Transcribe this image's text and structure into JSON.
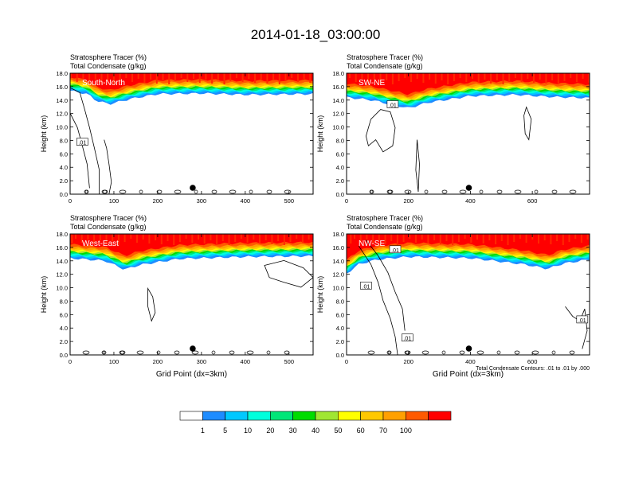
{
  "title": "2014-01-18_03:00:00",
  "chart_data": [
    {
      "type": "heatmap",
      "panel_label": "South-North",
      "subtitle_line1": "Stratosphere Tracer   (%)",
      "subtitle_line2": "Total Condensate   (g/kg)",
      "ylabel": "Height (km)",
      "xlabel": "",
      "ylim": [
        0,
        18
      ],
      "xlim": [
        0,
        555
      ],
      "yticks": [
        "0.0",
        "2.0",
        "4.0",
        "6.0",
        "8.0",
        "10.0",
        "12.0",
        "14.0",
        "16.0",
        "18.0"
      ],
      "xticks": [
        "0",
        "100",
        "200",
        "300",
        "400",
        "500"
      ],
      "xtick_values": [
        0,
        100,
        200,
        300,
        400,
        500
      ],
      "marker_x": 280,
      "contour_labels": [
        ".01"
      ],
      "tracer_profile": [
        [
          0,
          15.4
        ],
        [
          40,
          14.9
        ],
        [
          60,
          13.9
        ],
        [
          90,
          13.4
        ],
        [
          140,
          14.2
        ],
        [
          200,
          14.9
        ],
        [
          300,
          15.0
        ],
        [
          400,
          14.8
        ],
        [
          555,
          14.9
        ]
      ]
    },
    {
      "type": "heatmap",
      "panel_label": "SW-NE",
      "subtitle_line1": "Stratosphere Tracer   (%)",
      "subtitle_line2": "Total Condensate   (g/kg)",
      "ylabel": "Height (km)",
      "xlabel": "",
      "ylim": [
        0,
        18
      ],
      "xlim": [
        0,
        785
      ],
      "yticks": [
        "0.0",
        "2.0",
        "4.0",
        "6.0",
        "8.0",
        "10.0",
        "12.0",
        "14.0",
        "16.0",
        "18.0"
      ],
      "xticks": [
        "0",
        "200",
        "400",
        "600"
      ],
      "xtick_values": [
        0,
        200,
        400,
        600
      ],
      "marker_x": 395,
      "contour_labels": [
        ".01"
      ],
      "tracer_profile": [
        [
          0,
          14.4
        ],
        [
          80,
          14.0
        ],
        [
          200,
          12.8
        ],
        [
          260,
          13.6
        ],
        [
          400,
          14.6
        ],
        [
          550,
          14.8
        ],
        [
          650,
          14.5
        ],
        [
          785,
          14.3
        ]
      ]
    },
    {
      "type": "heatmap",
      "panel_label": "West-East",
      "subtitle_line1": "Stratosphere Tracer   (%)",
      "subtitle_line2": "Total Condensate   (g/kg)",
      "ylabel": "Height (km)",
      "xlabel": "Grid Point (dx=3km)",
      "ylim": [
        0,
        18
      ],
      "xlim": [
        0,
        555
      ],
      "yticks": [
        "0.0",
        "2.0",
        "4.0",
        "6.0",
        "8.0",
        "10.0",
        "12.0",
        "14.0",
        "16.0",
        "18.0"
      ],
      "xticks": [
        "0",
        "100",
        "200",
        "300",
        "400",
        "500"
      ],
      "xtick_values": [
        0,
        100,
        200,
        300,
        400,
        500
      ],
      "marker_x": 280,
      "contour_labels": [],
      "tracer_profile": [
        [
          0,
          14.4
        ],
        [
          80,
          14.0
        ],
        [
          125,
          12.7
        ],
        [
          160,
          13.4
        ],
        [
          250,
          14.3
        ],
        [
          400,
          14.6
        ],
        [
          555,
          14.7
        ]
      ]
    },
    {
      "type": "heatmap",
      "panel_label": "NW-SE",
      "subtitle_line1": "Stratosphere Tracer   (%)",
      "subtitle_line2": "Total Condensate   (g/kg)",
      "ylabel": "Height (km)",
      "xlabel": "Grid Point (dx=3km)",
      "ylim": [
        0,
        18
      ],
      "xlim": [
        0,
        785
      ],
      "yticks": [
        "0.0",
        "2.0",
        "4.0",
        "6.0",
        "8.0",
        "10.0",
        "12.0",
        "14.0",
        "16.0",
        "18.0"
      ],
      "xticks": [
        "0",
        "200",
        "400",
        "600"
      ],
      "xtick_values": [
        0,
        200,
        400,
        600
      ],
      "marker_x": 395,
      "contour_labels": [
        ".01",
        ".01",
        ".01",
        ".01"
      ],
      "contour_note": "Total Condensate Contours: .01 to .01 by .000",
      "tracer_profile": [
        [
          0,
          12.1
        ],
        [
          40,
          13.5
        ],
        [
          100,
          14.2
        ],
        [
          200,
          14.6
        ],
        [
          400,
          14.4
        ],
        [
          570,
          13.5
        ],
        [
          650,
          12.8
        ],
        [
          700,
          13.6
        ],
        [
          785,
          14.2
        ]
      ]
    }
  ],
  "colorbar": {
    "labels": [
      "1",
      "5",
      "10",
      "20",
      "30",
      "40",
      "50",
      "60",
      "70",
      "100"
    ],
    "colors": [
      "#ffffff",
      "#1e8cff",
      "#00c8ff",
      "#00ffdc",
      "#00e678",
      "#00dc00",
      "#a0e632",
      "#ffff00",
      "#ffc800",
      "#ffa000",
      "#ff5a00",
      "#ff0000"
    ]
  }
}
